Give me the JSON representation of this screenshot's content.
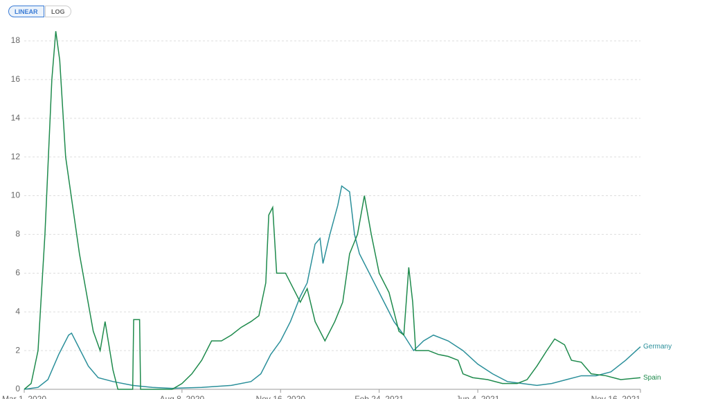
{
  "chart_data": {
    "type": "line",
    "scale_buttons": [
      "LINEAR",
      "LOG"
    ],
    "active_scale": "LINEAR",
    "grid": true,
    "xlim": [
      0,
      625
    ],
    "ylim": [
      0,
      18.5
    ],
    "xticks": [
      {
        "value": 0,
        "label": "Mar 1, 2020"
      },
      {
        "value": 160,
        "label": "Aug 8, 2020"
      },
      {
        "value": 260,
        "label": "Nov 16, 2020"
      },
      {
        "value": 360,
        "label": "Feb 24, 2021"
      },
      {
        "value": 460,
        "label": "Jun 4, 2021"
      },
      {
        "value": 625,
        "label": "Nov 16, 2021"
      }
    ],
    "yticks": [
      0,
      2,
      4,
      6,
      8,
      10,
      12,
      14,
      16,
      18
    ],
    "series": [
      {
        "name": "Germany",
        "color": "#2a8f9a",
        "x": [
          0,
          14,
          24,
          35,
          45,
          48,
          55,
          65,
          75,
          90,
          110,
          130,
          150,
          180,
          210,
          230,
          240,
          250,
          260,
          270,
          280,
          287,
          295,
          300,
          303,
          310,
          318,
          322,
          330,
          335,
          340,
          345,
          355,
          365,
          375,
          385,
          395,
          405,
          415,
          430,
          445,
          460,
          475,
          490,
          505,
          520,
          535,
          550,
          565,
          580,
          595,
          610,
          625
        ],
        "values": [
          0,
          0.1,
          0.5,
          1.8,
          2.8,
          2.9,
          2.2,
          1.2,
          0.6,
          0.4,
          0.2,
          0.1,
          0.05,
          0.1,
          0.2,
          0.4,
          0.8,
          1.8,
          2.5,
          3.5,
          4.8,
          5.5,
          7.5,
          7.8,
          6.5,
          8,
          9.5,
          10.5,
          10.2,
          8,
          7,
          6.5,
          5.5,
          4.5,
          3.5,
          2.8,
          2,
          2.5,
          2.8,
          2.5,
          2,
          1.3,
          0.8,
          0.4,
          0.3,
          0.2,
          0.3,
          0.5,
          0.7,
          0.7,
          0.9,
          1.5,
          2.2
        ]
      },
      {
        "name": "Spain",
        "color": "#1e8a4c",
        "x": [
          0,
          7,
          14,
          21,
          28,
          32,
          36,
          42,
          49,
          56,
          63,
          70,
          77,
          82,
          90,
          95,
          110,
          111,
          117,
          118,
          150,
          160,
          170,
          180,
          190,
          200,
          210,
          220,
          230,
          238,
          245,
          248,
          252,
          256,
          265,
          270,
          280,
          287,
          295,
          305,
          315,
          323,
          330,
          338,
          345,
          352,
          360,
          370,
          380,
          385,
          390,
          394,
          397,
          410,
          420,
          430,
          440,
          445,
          455,
          470,
          485,
          500,
          510,
          520,
          530,
          538,
          548,
          555,
          565,
          575,
          590,
          605,
          625
        ],
        "values": [
          0,
          0.3,
          2,
          8,
          16,
          18.5,
          17,
          12,
          9.5,
          7,
          5,
          3,
          2,
          3.5,
          1,
          0,
          0,
          3.6,
          3.6,
          0,
          0,
          0.3,
          0.8,
          1.5,
          2.5,
          2.5,
          2.8,
          3.2,
          3.5,
          3.8,
          5.5,
          9,
          9.4,
          6,
          6,
          5.5,
          4.5,
          5.2,
          3.5,
          2.5,
          3.5,
          4.5,
          7,
          8,
          10,
          8,
          6,
          5,
          3,
          2.8,
          6.3,
          4.5,
          2,
          2,
          1.8,
          1.7,
          1.5,
          0.8,
          0.6,
          0.5,
          0.3,
          0.3,
          0.5,
          1.2,
          2,
          2.6,
          2.3,
          1.5,
          1.4,
          0.8,
          0.7,
          0.5,
          0.6
        ]
      }
    ]
  }
}
